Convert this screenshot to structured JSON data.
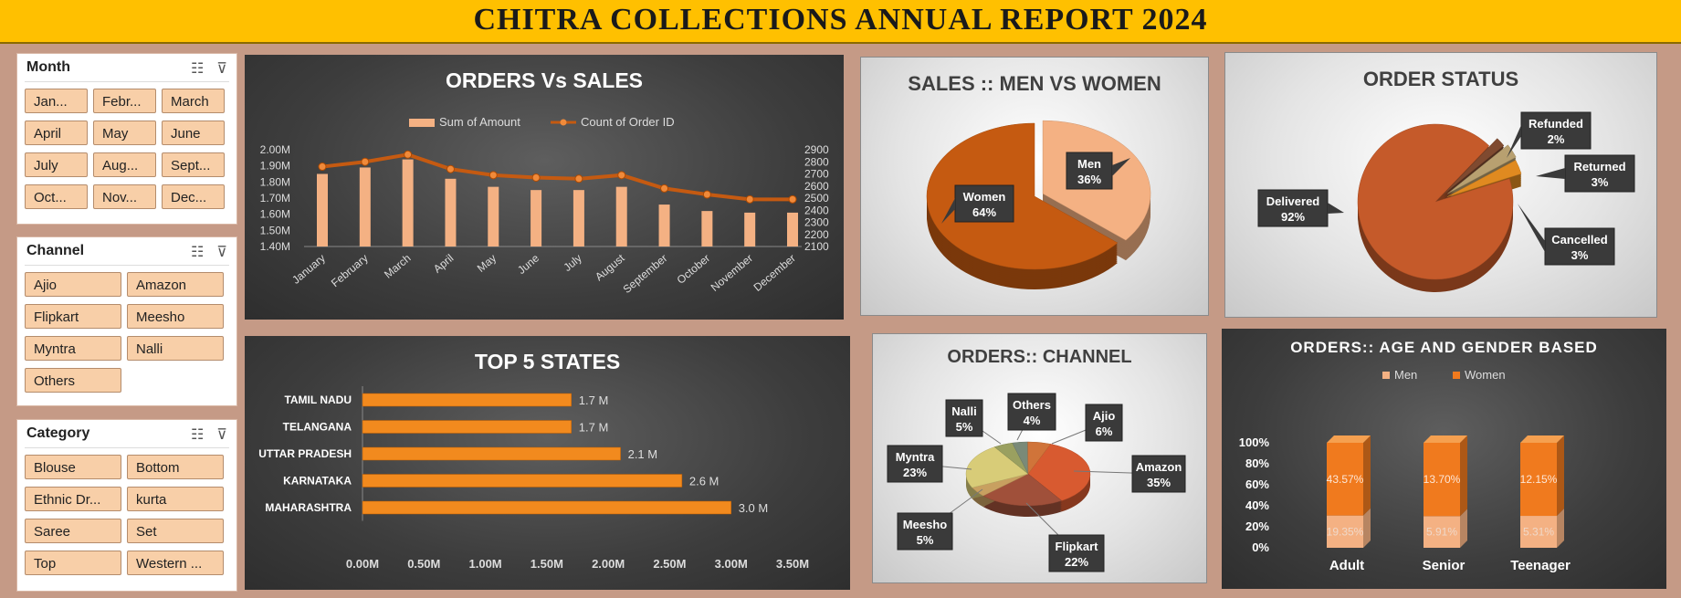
{
  "banner": {
    "title": "CHITRA COLLECTIONS ANNUAL REPORT 2024"
  },
  "slicers": {
    "month": {
      "title": "Month",
      "items": [
        "Jan...",
        "Febr...",
        "March",
        "April",
        "May",
        "June",
        "July",
        "Aug...",
        "Sept...",
        "Oct...",
        "Nov...",
        "Dec..."
      ]
    },
    "channel": {
      "title": "Channel",
      "items": [
        "Ajio",
        "Amazon",
        "Flipkart",
        "Meesho",
        "Myntra",
        "Nalli",
        "Others"
      ]
    },
    "category": {
      "title": "Category",
      "items": [
        "Blouse",
        "Bottom",
        "Ethnic Dr...",
        "kurta",
        "Saree",
        "Set",
        "Top",
        "Western ..."
      ]
    }
  },
  "chart_data": [
    {
      "type": "bar",
      "title": "ORDERS Vs SALES",
      "categories": [
        "January",
        "February",
        "March",
        "April",
        "May",
        "June",
        "July",
        "August",
        "September",
        "October",
        "November",
        "December"
      ],
      "series": [
        {
          "name": "Sum of Amount",
          "values": [
            1.85,
            1.89,
            1.94,
            1.82,
            1.77,
            1.75,
            1.75,
            1.77,
            1.66,
            1.62,
            1.61,
            1.61
          ],
          "color": "#f4b183"
        },
        {
          "name": "Count of Order ID",
          "type": "line",
          "axis": "secondary",
          "values": [
            2760,
            2800,
            2860,
            2740,
            2690,
            2670,
            2660,
            2690,
            2580,
            2530,
            2490,
            2490
          ],
          "color": "#c55a11"
        }
      ],
      "y_tick_labels": [
        "1.40M",
        "1.50M",
        "1.60M",
        "1.70M",
        "1.80M",
        "1.90M",
        "2.00M"
      ],
      "y2_tick_labels": [
        "2100",
        "2200",
        "2300",
        "2400",
        "2500",
        "2600",
        "2700",
        "2800",
        "2900"
      ],
      "ylim": [
        1.4,
        2.0
      ],
      "y2lim": [
        2100,
        2900
      ],
      "legend": "top"
    },
    {
      "type": "pie",
      "title": "SALES :: MEN VS WOMEN",
      "labels": [
        "Men",
        "Women"
      ],
      "values": [
        36,
        64
      ],
      "value_labels": [
        "36%",
        "64%"
      ],
      "colors": [
        "#f4b183",
        "#c55a11"
      ]
    },
    {
      "type": "pie",
      "title": "ORDER STATUS",
      "labels": [
        "Delivered",
        "Refunded",
        "Returned",
        "Cancelled"
      ],
      "values": [
        92,
        2,
        3,
        3
      ],
      "value_labels": [
        "92%",
        "2%",
        "3%",
        "3%"
      ],
      "colors": [
        "#c55a2a",
        "#7f4a30",
        "#b8a070",
        "#e08a20"
      ]
    },
    {
      "type": "bar",
      "orientation": "horizontal",
      "title": "TOP 5 STATES",
      "categories": [
        "TAMIL NADU",
        "TELANGANA",
        "UTTAR PRADESH",
        "KARNATAKA",
        "MAHARASHTRA"
      ],
      "values": [
        1.7,
        1.7,
        2.1,
        2.6,
        3.0
      ],
      "value_labels": [
        "1.7 M",
        "1.7 M",
        "2.1 M",
        "2.6 M",
        "3.0 M"
      ],
      "x_tick_labels": [
        "0.00M",
        "0.50M",
        "1.00M",
        "1.50M",
        "2.00M",
        "2.50M",
        "3.00M",
        "3.50M"
      ],
      "xlim": [
        0,
        3.5
      ]
    },
    {
      "type": "pie",
      "title": "ORDERS:: CHANNEL",
      "labels": [
        "Amazon",
        "Flipkart",
        "Meesho",
        "Myntra",
        "Nalli",
        "Others",
        "Ajio"
      ],
      "values": [
        35,
        22,
        5,
        23,
        5,
        4,
        6
      ],
      "value_labels": [
        "35%",
        "22%",
        "5%",
        "23%",
        "5%",
        "4%",
        "6%"
      ],
      "colors": [
        "#d85a30",
        "#a0503a",
        "#c8a060",
        "#d8cc78",
        "#9aa060",
        "#7a8a78",
        "#d0743a"
      ]
    },
    {
      "type": "bar",
      "stacked": true,
      "title": "ORDERS:: AGE AND GENDER BASED",
      "categories": [
        "Adult",
        "Senior",
        "Teenager"
      ],
      "series": [
        {
          "name": "Men",
          "values": [
            19.35,
            5.91,
            5.31
          ],
          "labels": [
            "19.35%",
            "5.91%",
            "5.31%"
          ],
          "color": "#f4b183"
        },
        {
          "name": "Women",
          "values": [
            43.57,
            13.7,
            12.15
          ],
          "labels": [
            "43.57%",
            "13.70%",
            "12.15%"
          ],
          "color": "#f07a1e"
        }
      ],
      "y_tick_labels": [
        "0%",
        "20%",
        "40%",
        "60%",
        "80%",
        "100%"
      ],
      "ylim": [
        0,
        100
      ],
      "legend": "top"
    }
  ]
}
